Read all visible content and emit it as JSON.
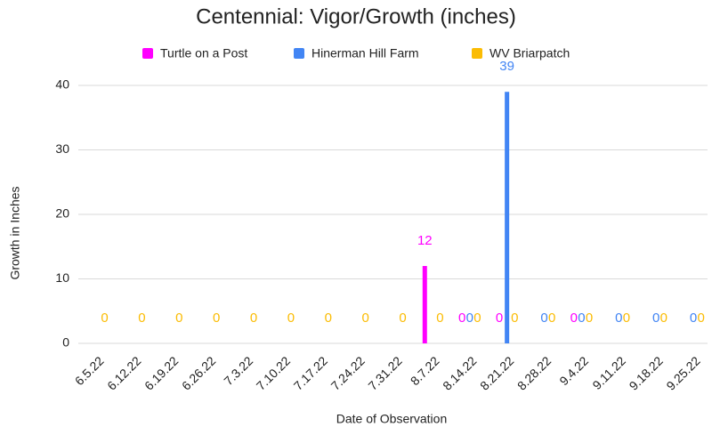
{
  "chart_data": {
    "type": "bar",
    "title": "Centennial: Vigor/Growth (inches)",
    "x_label": "Date of Observation",
    "y_label": "Growth in Inches",
    "categories": [
      "6.5.22",
      "6.12.22",
      "6.19.22",
      "6.26.22",
      "7.3.22",
      "7.10.22",
      "7.17.22",
      "7.24.22",
      "7.31.22",
      "8.7.22",
      "8.14.22",
      "8.21.22",
      "8.28.22",
      "9.4.22",
      "9.11.22",
      "9.18.22",
      "9.25.22"
    ],
    "series": [
      {
        "name": "Turtle on a Post",
        "color": "#ff00ff",
        "values": [
          null,
          null,
          null,
          null,
          null,
          null,
          null,
          null,
          null,
          12,
          0,
          0,
          null,
          0,
          null,
          null,
          null
        ]
      },
      {
        "name": "Hinerman Hill Farm",
        "color": "#4285f4",
        "values": [
          null,
          null,
          null,
          null,
          null,
          null,
          null,
          null,
          null,
          null,
          0,
          39,
          0,
          0,
          0,
          0,
          0
        ]
      },
      {
        "name": "WV Briarpatch",
        "color": "#fbbc04",
        "values": [
          0,
          0,
          0,
          0,
          0,
          0,
          0,
          0,
          0,
          0,
          0,
          0,
          0,
          0,
          0,
          0,
          0
        ]
      }
    ],
    "ylim": [
      0,
      40
    ],
    "yticks": [
      0,
      10,
      20,
      30,
      40
    ],
    "grid": true,
    "legend": "top",
    "data_labels": true
  }
}
